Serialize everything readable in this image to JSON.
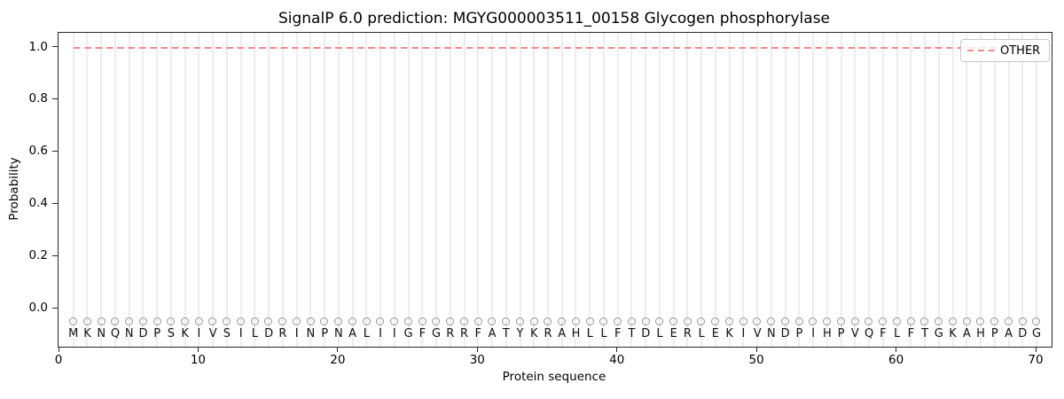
{
  "title": "SignalP 6.0 prediction: MGYG000003511_00158 Glycogen phosphorylase",
  "axes": {
    "xlabel": "Protein sequence",
    "ylabel": "Probability",
    "x_tick_labels": [
      "0",
      "10",
      "20",
      "30",
      "40",
      "50",
      "60",
      "70"
    ],
    "x_tick_values": [
      0,
      10,
      20,
      30,
      40,
      50,
      60,
      70
    ],
    "y_tick_labels": [
      "0.0",
      "0.2",
      "0.4",
      "0.6",
      "0.8",
      "1.0"
    ],
    "y_tick_values": [
      0.0,
      0.2,
      0.4,
      0.6,
      0.8,
      1.0
    ]
  },
  "legend": {
    "position": "upper right",
    "entries": [
      {
        "label": "OTHER",
        "color": "#f18a8a",
        "line_style": "dashed"
      }
    ]
  },
  "colors": {
    "other_line": "#f18a8a",
    "marker_stroke": "#969696",
    "gridline": "#ededed",
    "spine": "#262626"
  },
  "sequence": [
    "M",
    "K",
    "N",
    "Q",
    "N",
    "D",
    "P",
    "S",
    "K",
    "I",
    "V",
    "S",
    "I",
    "L",
    "D",
    "R",
    "I",
    "N",
    "P",
    "N",
    "A",
    "L",
    "I",
    "I",
    "G",
    "F",
    "G",
    "R",
    "R",
    "F",
    "A",
    "T",
    "Y",
    "K",
    "R",
    "A",
    "H",
    "L",
    "L",
    "F",
    "T",
    "D",
    "L",
    "E",
    "R",
    "L",
    "E",
    "K",
    "I",
    "V",
    "N",
    "D",
    "P",
    "I",
    "H",
    "P",
    "V",
    "Q",
    "F",
    "L",
    "F",
    "T",
    "G",
    "K",
    "A",
    "H",
    "P",
    "A",
    "D",
    "G"
  ],
  "chart_data": {
    "type": "line",
    "title": "SignalP 6.0 prediction: MGYG000003511_00158 Glycogen phosphorylase",
    "xlabel": "Protein sequence",
    "ylabel": "Probability",
    "xlim": [
      0,
      71
    ],
    "ylim": [
      -0.15,
      1.06
    ],
    "grid": "light vertical gridline at every residue position, no horizontal gridlines",
    "legend_position": "upper right",
    "series": [
      {
        "name": "OTHER",
        "color": "#f18a8a",
        "line_style": "dashed",
        "x": [
          1,
          2,
          3,
          4,
          5,
          6,
          7,
          8,
          9,
          10,
          11,
          12,
          13,
          14,
          15,
          16,
          17,
          18,
          19,
          20,
          21,
          22,
          23,
          24,
          25,
          26,
          27,
          28,
          29,
          30,
          31,
          32,
          33,
          34,
          35,
          36,
          37,
          38,
          39,
          40,
          41,
          42,
          43,
          44,
          45,
          46,
          47,
          48,
          49,
          50,
          51,
          52,
          53,
          54,
          55,
          56,
          57,
          58,
          59,
          60,
          61,
          62,
          63,
          64,
          65,
          66,
          67,
          68,
          69,
          70
        ],
        "values": [
          1.0,
          1.0,
          1.0,
          1.0,
          1.0,
          1.0,
          1.0,
          1.0,
          1.0,
          1.0,
          1.0,
          1.0,
          1.0,
          1.0,
          1.0,
          1.0,
          1.0,
          1.0,
          1.0,
          1.0,
          1.0,
          1.0,
          1.0,
          1.0,
          1.0,
          1.0,
          1.0,
          1.0,
          1.0,
          1.0,
          1.0,
          1.0,
          1.0,
          1.0,
          1.0,
          1.0,
          1.0,
          1.0,
          1.0,
          1.0,
          1.0,
          1.0,
          1.0,
          1.0,
          1.0,
          1.0,
          1.0,
          1.0,
          1.0,
          1.0,
          1.0,
          1.0,
          1.0,
          1.0,
          1.0,
          1.0,
          1.0,
          1.0,
          1.0,
          1.0,
          1.0,
          1.0,
          1.0,
          1.0,
          1.0,
          1.0,
          1.0,
          1.0,
          1.0,
          1.0
        ]
      }
    ],
    "residue_markers": {
      "symbol": "open-circle",
      "color": "#969696",
      "marker_y": -0.05,
      "letter_y": -0.1,
      "sequence": "MKNQNDPSKIVSILDRINPNALIIGFGRRFATYKRAHLLFTDLERLEKIVNDPIHPVQFLFTGKAHPADG"
    }
  }
}
